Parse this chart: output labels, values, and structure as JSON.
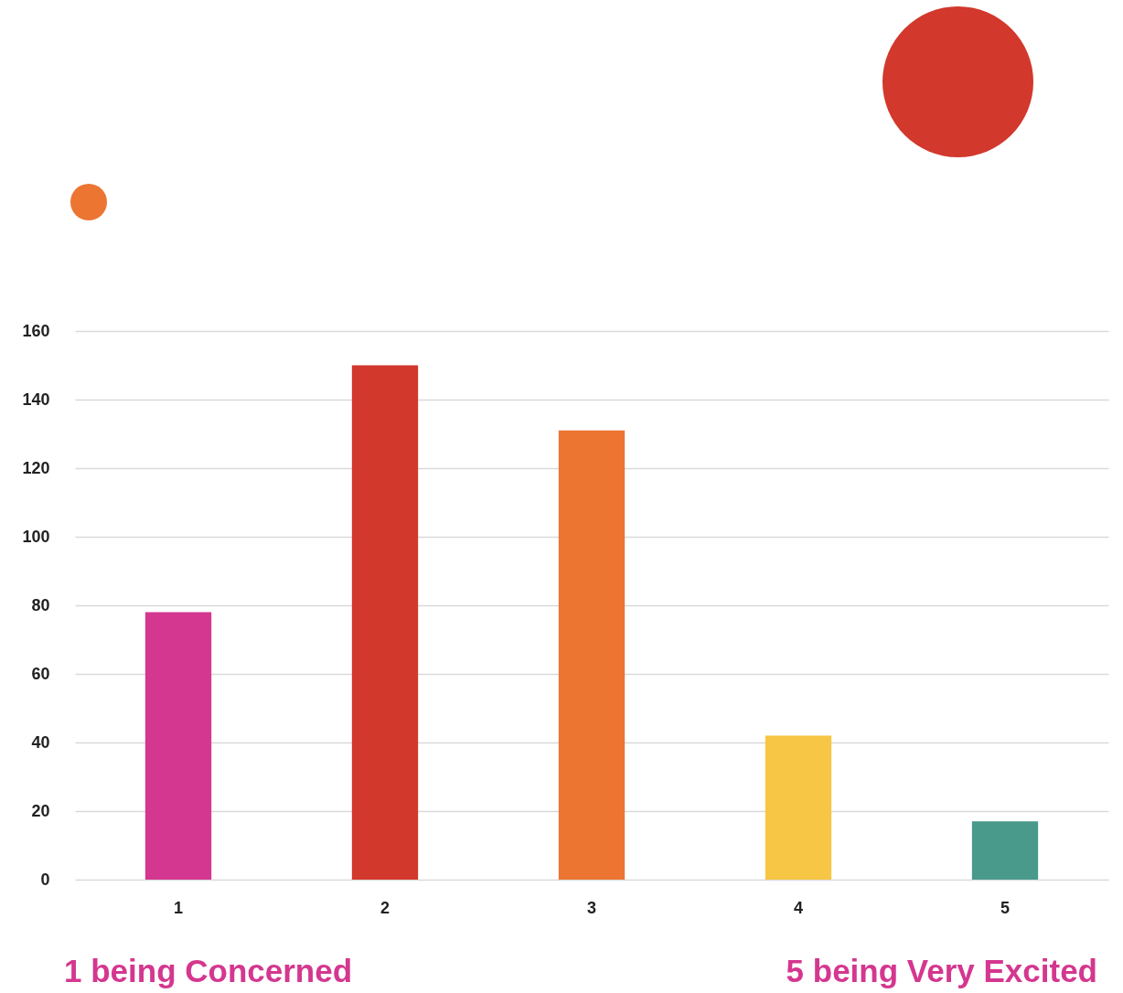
{
  "chart_data": {
    "type": "bar",
    "categories": [
      "1",
      "2",
      "3",
      "4",
      "5"
    ],
    "values": [
      78,
      150,
      131,
      42,
      17
    ],
    "colors": [
      "#d4378f",
      "#d2382c",
      "#ec7532",
      "#f6c644",
      "#4a9a8c"
    ],
    "ylim": [
      0,
      160
    ],
    "yticks": [
      0,
      20,
      40,
      60,
      80,
      100,
      120,
      140,
      160
    ],
    "grid": "y",
    "annotations": [
      "1 being Concerned",
      "5 being Very Excited"
    ]
  }
}
